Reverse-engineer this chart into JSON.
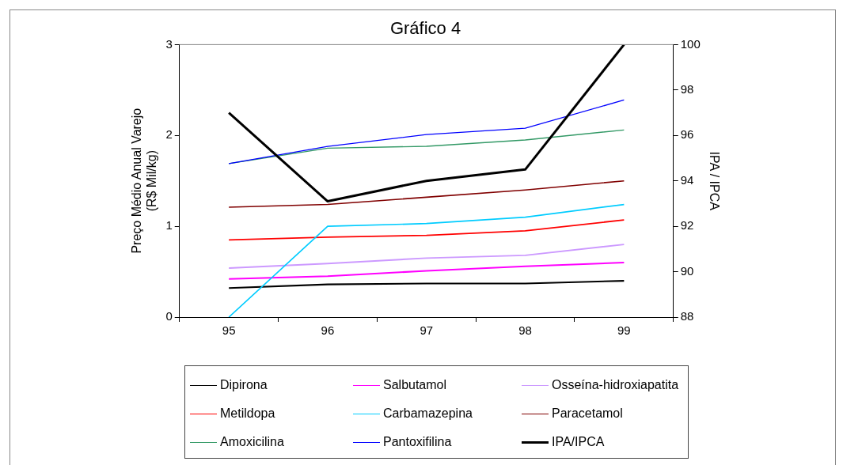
{
  "chart_data": {
    "type": "line",
    "title": "Gráfico 4",
    "ylabel": "Preço Médio Anual Varejo\n(R$ Mil/kg)",
    "y2label": "IPA / IPCA",
    "categories": [
      "95",
      "96",
      "97",
      "98",
      "99"
    ],
    "series": [
      {
        "name": "Dipirona",
        "color": "#000000",
        "values": [
          0.32,
          0.36,
          0.37,
          0.37,
          0.4
        ]
      },
      {
        "name": "Salbutamol",
        "color": "#ff00ff",
        "values": [
          0.42,
          0.45,
          0.51,
          0.56,
          0.6
        ]
      },
      {
        "name": "Osseína-hidroxiapatita",
        "color": "#cc99ff",
        "values": [
          0.54,
          0.59,
          0.65,
          0.68,
          0.8
        ]
      },
      {
        "name": "Metildopa",
        "color": "#ff0000",
        "values": [
          0.85,
          0.88,
          0.9,
          0.95,
          1.07
        ]
      },
      {
        "name": "Carbamazepina",
        "color": "#00ccff",
        "values": [
          0,
          1.0,
          1.03,
          1.1,
          1.24
        ]
      },
      {
        "name": "Paracetamol",
        "color": "#800000",
        "values": [
          1.21,
          1.24,
          1.32,
          1.4,
          1.5
        ]
      },
      {
        "name": "Amoxicilina",
        "color": "#339966",
        "values": [
          1.69,
          1.86,
          1.88,
          1.95,
          2.06
        ]
      },
      {
        "name": "Pantoxifilina",
        "color": "#0000ff",
        "values": [
          1.69,
          1.88,
          2.01,
          2.08,
          2.39
        ]
      },
      {
        "name": "IPA/IPCA",
        "color": "#000000",
        "axis": "y2",
        "values": [
          97,
          93.1,
          94,
          94.5,
          100
        ]
      }
    ],
    "ylim": [
      0,
      3
    ],
    "yticks": [
      0,
      1,
      2,
      3
    ],
    "y2lim": [
      88,
      100
    ],
    "y2ticks": [
      88,
      90,
      92,
      94,
      96,
      98,
      100
    ],
    "grid": false,
    "legend": "bottom",
    "marker": "none",
    "line_style": "solid"
  }
}
